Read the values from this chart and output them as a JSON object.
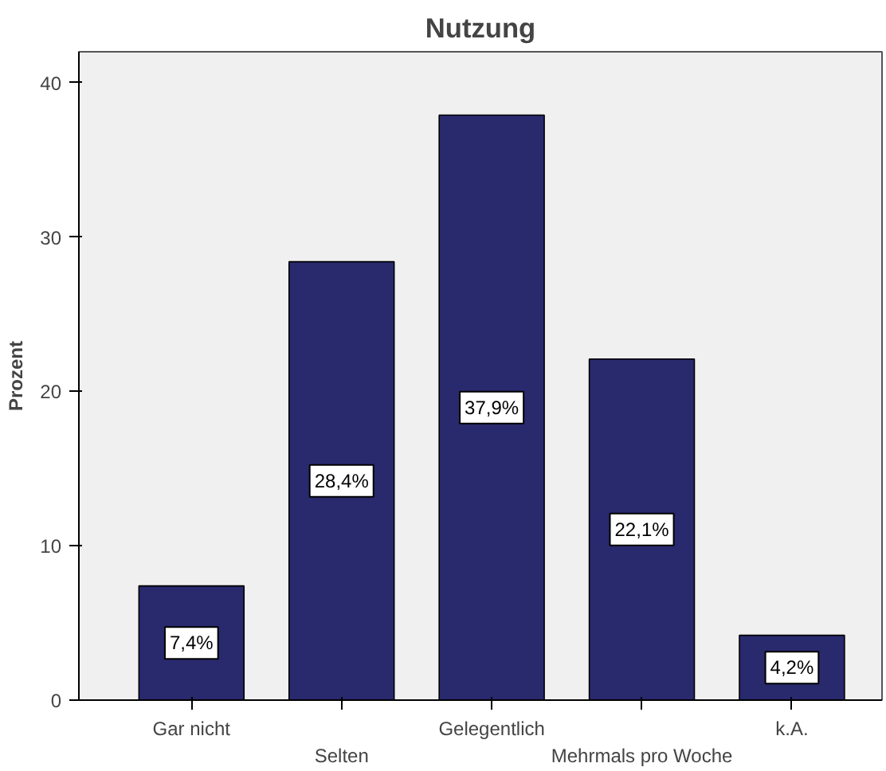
{
  "chart_data": {
    "type": "bar",
    "title": "Nutzung",
    "ylabel": "Prozent",
    "categories": [
      "Gar nicht",
      "Selten",
      "Gelegentlich",
      "Mehrmals pro Woche",
      "k.A."
    ],
    "values": [
      7.4,
      28.4,
      37.9,
      22.1,
      4.2
    ],
    "value_labels": [
      "7,4%",
      "28,4%",
      "37,9%",
      "22,1%",
      "4,2%"
    ],
    "color": "#29296e",
    "ylim": [
      0,
      42
    ],
    "yticks": [
      0,
      10,
      20,
      30,
      40
    ],
    "grid": false
  }
}
